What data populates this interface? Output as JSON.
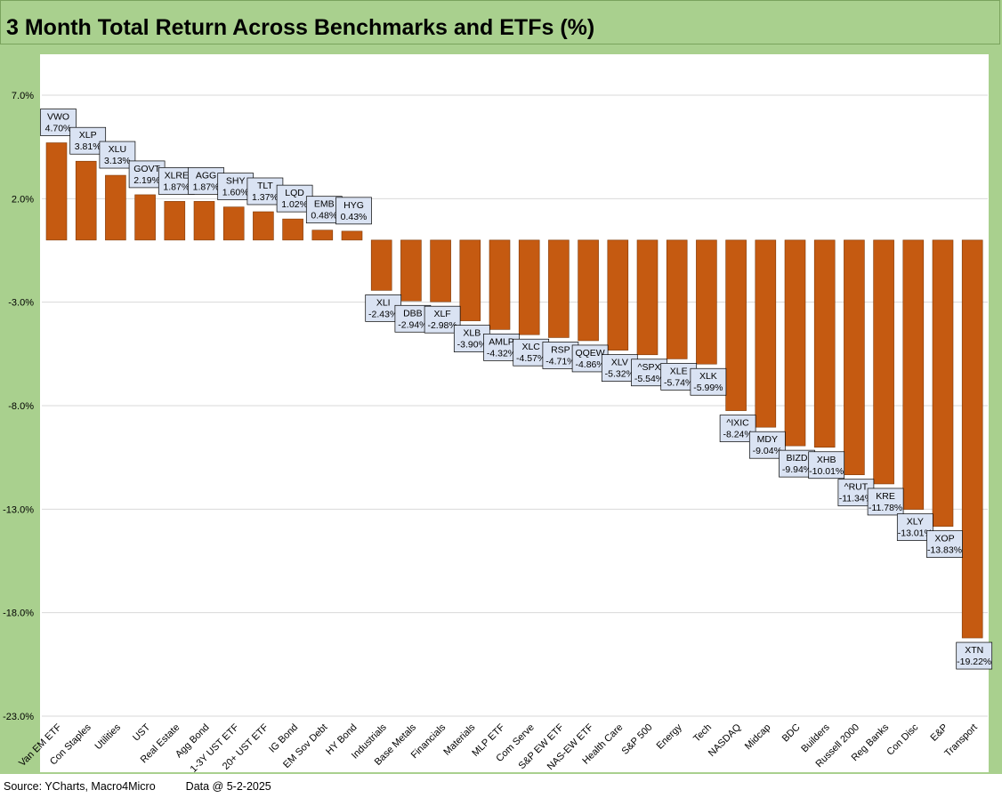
{
  "title": "3 Month Total Return Across Benchmarks and ETFs (%)",
  "footer": {
    "source": "Source: YCharts, Macro4Micro",
    "date": "Data @ 5-2-2025"
  },
  "colors": {
    "bar": "#c55a11",
    "background_band": "#a9d08e",
    "label_box": "#dae3f3",
    "grid": "#d9d9d9"
  },
  "chart_data": {
    "type": "bar",
    "title": "3 Month Total Return Across Benchmarks and ETFs (%)",
    "xlabel": "",
    "ylabel": "",
    "ylim": [
      -23,
      9.5
    ],
    "y_ticks": [
      7,
      2,
      -3,
      -8,
      -13,
      -18,
      -23
    ],
    "y_tick_labels": [
      "7.0%",
      "2.0%",
      "-3.0%",
      "-8.0%",
      "-13.0%",
      "-18.0%",
      "-23.0%"
    ],
    "grid": true,
    "legend": "none",
    "categories": [
      "Van EM ETF",
      "Con Staples",
      "Utilities",
      "UST",
      "Real Estate",
      "Agg Bond",
      "1-3Y UST ETF",
      "20+ UST ETF",
      "IG Bond",
      "EM Sov Debt",
      "HY Bond",
      "Industrials",
      "Base Metals",
      "Financials",
      "Materials",
      "MLP ETF",
      "Com Serve",
      "S&P EW ETF",
      "NAS-EW ETF",
      "Health Care",
      "S&P 500",
      "Energy",
      "Tech",
      "NASDAQ",
      "Midcap",
      "BDC",
      "Builders",
      "Russell 2000",
      "Reg Banks",
      "Con Disc",
      "E&P",
      "Transport"
    ],
    "tickers": [
      "VWO",
      "XLP",
      "XLU",
      "GOVT",
      "XLRE",
      "AGG",
      "SHY",
      "TLT",
      "LQD",
      "EMB",
      "HYG",
      "XLI",
      "DBB",
      "XLF",
      "XLB",
      "AMLP",
      "XLC",
      "RSP",
      "QQEW",
      "XLV",
      "^SPX",
      "XLE",
      "XLK",
      "^IXIC",
      "MDY",
      "BIZD",
      "XHB",
      "^RUT",
      "KRE",
      "XLY",
      "XOP",
      "XTN"
    ],
    "values": [
      4.7,
      3.81,
      3.13,
      2.19,
      1.87,
      1.87,
      1.6,
      1.37,
      1.02,
      0.48,
      0.43,
      -2.43,
      -2.94,
      -2.98,
      -3.9,
      -4.32,
      -4.57,
      -4.71,
      -4.86,
      -5.32,
      -5.54,
      -5.74,
      -5.99,
      -8.24,
      -9.04,
      -9.94,
      -10.01,
      -11.34,
      -11.78,
      -13.01,
      -13.83,
      -19.22
    ],
    "value_labels": [
      "4.70%",
      "3.81%",
      "3.13%",
      "2.19%",
      "1.87%",
      "1.87%",
      "1.60%",
      "1.37%",
      "1.02%",
      "0.48%",
      "0.43%",
      "-2.43%",
      "-2.94%",
      "-2.98%",
      "-3.90%",
      "-4.32%",
      "-4.57%",
      "-4.71%",
      "-4.86%",
      "-5.32%",
      "-5.54%",
      "-5.74%",
      "-5.99%",
      "-8.24%",
      "-9.04%",
      "-9.94%",
      "-10.01%",
      "-11.34%",
      "-11.78%",
      "-13.01%",
      "-13.83%",
      "-19.22%"
    ]
  }
}
